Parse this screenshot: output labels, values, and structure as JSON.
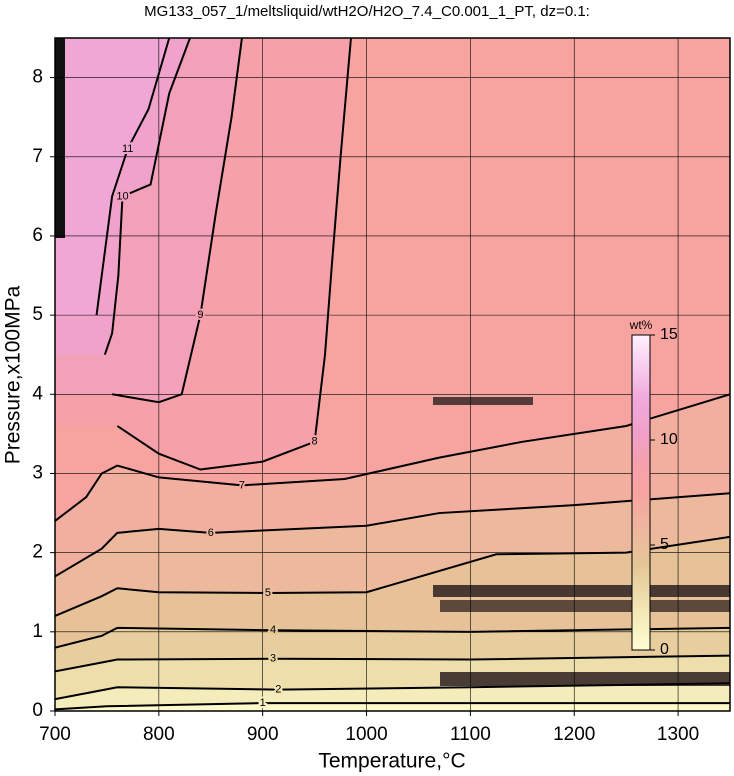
{
  "chart_data": {
    "type": "contour",
    "title": "MG133_057_1/meltsliquid/wtH2O/H2O_7.4_C0.001_1_PT, dz=0.1:",
    "x_label": "Temperature,°C",
    "y_label": "Pressure,x100MPa",
    "xlim": [
      700,
      1350
    ],
    "ylim": [
      0,
      8.5
    ],
    "xticks": [
      700,
      800,
      900,
      1000,
      1100,
      1200,
      1300
    ],
    "yticks": [
      0,
      1,
      2,
      3,
      4,
      5,
      6,
      7,
      8
    ],
    "grid": true,
    "colorbar": {
      "label": "wt%",
      "lim": [
        0,
        15
      ],
      "ticks": [
        0,
        5,
        10,
        15
      ]
    },
    "contours": [
      {
        "level": 1,
        "x": [
          700,
          750,
          900,
          1100,
          1350
        ],
        "y": [
          0.02,
          0.06,
          0.1,
          0.1,
          0.1
        ]
      },
      {
        "level": 2,
        "x": [
          700,
          740,
          760,
          915,
          1100,
          1350
        ],
        "y": [
          0.15,
          0.25,
          0.3,
          0.27,
          0.3,
          0.35
        ]
      },
      {
        "level": 3,
        "x": [
          700,
          740,
          760,
          910,
          1100,
          1350
        ],
        "y": [
          0.5,
          0.6,
          0.65,
          0.66,
          0.65,
          0.7
        ]
      },
      {
        "level": 4,
        "x": [
          700,
          745,
          760,
          910,
          1100,
          1350
        ],
        "y": [
          0.8,
          0.95,
          1.05,
          1.02,
          1.0,
          1.05
        ]
      },
      {
        "level": 5,
        "x": [
          700,
          745,
          760,
          800,
          905,
          1000,
          1125,
          1250,
          1350
        ],
        "y": [
          1.2,
          1.45,
          1.55,
          1.5,
          1.49,
          1.5,
          1.98,
          2.0,
          2.2
        ]
      },
      {
        "level": 6,
        "x": [
          700,
          745,
          760,
          800,
          850,
          1000,
          1070,
          1200,
          1350
        ],
        "y": [
          1.7,
          2.05,
          2.25,
          2.3,
          2.25,
          2.34,
          2.5,
          2.6,
          2.75
        ]
      },
      {
        "level": 7,
        "x": [
          700,
          730,
          745,
          760,
          800,
          880,
          979,
          1070,
          1150,
          1250,
          1350
        ],
        "y": [
          2.4,
          2.7,
          3.0,
          3.1,
          2.95,
          2.85,
          2.93,
          3.2,
          3.4,
          3.6,
          4.0
        ]
      },
      {
        "level": 8,
        "x": [
          760,
          800,
          840,
          900,
          950,
          960,
          967,
          975,
          985
        ],
        "y": [
          3.6,
          3.25,
          3.05,
          3.15,
          3.4,
          4.5,
          5.7,
          7.0,
          8.5
        ]
      },
      {
        "level": 9,
        "x": [
          755,
          800,
          822,
          840,
          855,
          870,
          880
        ],
        "y": [
          4.0,
          3.9,
          4.0,
          5.0,
          6.3,
          7.5,
          8.5
        ]
      },
      {
        "level": 10,
        "x": [
          748,
          755,
          761,
          765,
          792,
          810,
          830
        ],
        "y": [
          4.5,
          4.77,
          5.5,
          6.5,
          6.65,
          7.8,
          8.5
        ]
      },
      {
        "level": 11,
        "x": [
          740,
          745,
          755,
          770,
          790,
          810
        ],
        "y": [
          5.0,
          5.5,
          6.5,
          7.1,
          7.6,
          8.5
        ]
      }
    ]
  }
}
